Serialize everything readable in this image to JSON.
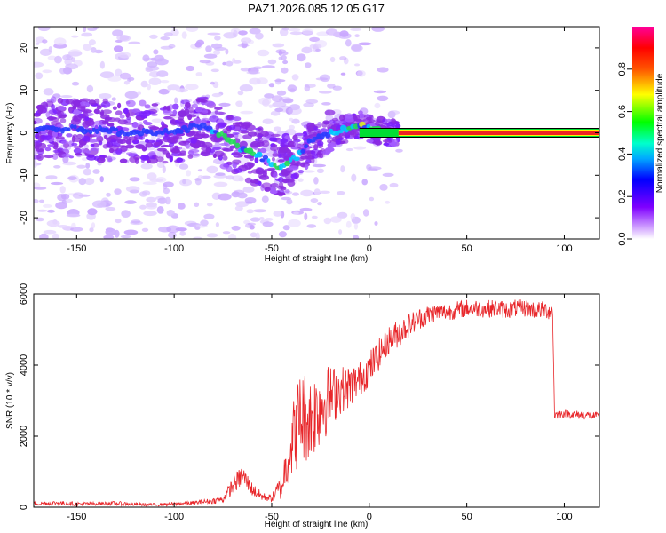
{
  "title": "PAZ1.2026.085.12.05.G17",
  "colors": {
    "snr_line": "#e8262a",
    "ridge_green": "#00dd33",
    "ridge_red": "#ee2222",
    "ridge_yellow": "#ffee00"
  },
  "chart_data": [
    {
      "type": "heatmap",
      "title": "",
      "xlabel": "Height of straight line (km)",
      "ylabel": "Frequency (Hz)",
      "xlim": [
        -172,
        118
      ],
      "ylim": [
        -25,
        25
      ],
      "x_ticks": [
        -150,
        -100,
        -50,
        0,
        50,
        100
      ],
      "x_tick_labels": [
        "-150",
        "-100",
        "-50",
        "0",
        "50",
        "100"
      ],
      "y_ticks": [
        20,
        10,
        0,
        -10,
        -20
      ],
      "y_tick_labels": [
        "20",
        "10",
        "0",
        "-10",
        "-20"
      ],
      "colorbar": {
        "label": "Normalized spectral amplitude",
        "range": [
          0,
          1
        ],
        "ticks": [
          0.0,
          0.2,
          0.4,
          0.6,
          0.8
        ],
        "tick_labels": [
          "0.0",
          "0.2",
          "0.4",
          "0.6",
          "0.8"
        ],
        "colormap": "rainbow (white-purple-blue-cyan-green-yellow-red-magenta)"
      },
      "ridge": {
        "description": "Dominant frequency ridge vs height",
        "x": [
          -172,
          -150,
          -120,
          -100,
          -85,
          -75,
          -65,
          -55,
          -45,
          -38,
          -30,
          -20,
          -10,
          -5,
          0,
          5,
          10,
          15,
          30,
          50,
          70,
          100,
          118
        ],
        "y": [
          1,
          1,
          0,
          0,
          2,
          -1,
          -4,
          -6,
          -8,
          -6,
          -2,
          0,
          1,
          2,
          1,
          0.5,
          0,
          0,
          0,
          0,
          0,
          0,
          0
        ],
        "peak_amplitude": [
          0.25,
          0.25,
          0.25,
          0.3,
          0.35,
          0.45,
          0.45,
          0.4,
          0.45,
          0.4,
          0.35,
          0.4,
          0.45,
          0.55,
          0.6,
          0.6,
          0.65,
          0.9,
          0.9,
          0.9,
          0.9,
          0.9,
          0.9
        ]
      }
    },
    {
      "type": "line",
      "title": "",
      "xlabel": "Height of straight line (km)",
      "ylabel": "SNR (10 * v/v)",
      "xlim": [
        -172,
        118
      ],
      "ylim": [
        0,
        6000
      ],
      "x_ticks": [
        -150,
        -100,
        -50,
        0,
        50,
        100
      ],
      "x_tick_labels": [
        "-150",
        "-100",
        "-50",
        "0",
        "50",
        "100"
      ],
      "y_ticks": [
        0,
        2000,
        4000,
        6000
      ],
      "y_tick_labels": [
        "0",
        "2000",
        "4000",
        "6000"
      ],
      "series": [
        {
          "x": [
            -172,
            -160,
            -150,
            -140,
            -130,
            -120,
            -110,
            -100,
            -90,
            -80,
            -75,
            -70,
            -65,
            -60,
            -55,
            -50,
            -45,
            -40,
            -35,
            -30,
            -25,
            -20,
            -15,
            -10,
            -5,
            0,
            5,
            10,
            15,
            20,
            25,
            30,
            35,
            40,
            45,
            50,
            55,
            60,
            65,
            70,
            75,
            80,
            85,
            90,
            94,
            95,
            96,
            100,
            105,
            110,
            118
          ],
          "y": [
            100,
            120,
            90,
            100,
            110,
            80,
            70,
            90,
            120,
            180,
            220,
            600,
            900,
            500,
            300,
            250,
            600,
            1800,
            2600,
            2500,
            2900,
            3100,
            3300,
            3400,
            3600,
            3900,
            4300,
            4700,
            4900,
            5100,
            5300,
            5400,
            5500,
            5500,
            5550,
            5600,
            5600,
            5580,
            5600,
            5550,
            5600,
            5600,
            5550,
            5550,
            5500,
            2600,
            2600,
            2650,
            2600,
            2600,
            2550
          ],
          "noise_amplitude": [
            60,
            60,
            60,
            50,
            60,
            50,
            40,
            50,
            60,
            80,
            100,
            250,
            300,
            200,
            120,
            100,
            400,
            1000,
            1400,
            1200,
            1200,
            900,
            700,
            600,
            500,
            500,
            450,
            400,
            400,
            350,
            300,
            300,
            250,
            250,
            250,
            250,
            250,
            250,
            250,
            250,
            250,
            250,
            250,
            250,
            250,
            120,
            120,
            120,
            120,
            120,
            120
          ]
        }
      ]
    }
  ]
}
